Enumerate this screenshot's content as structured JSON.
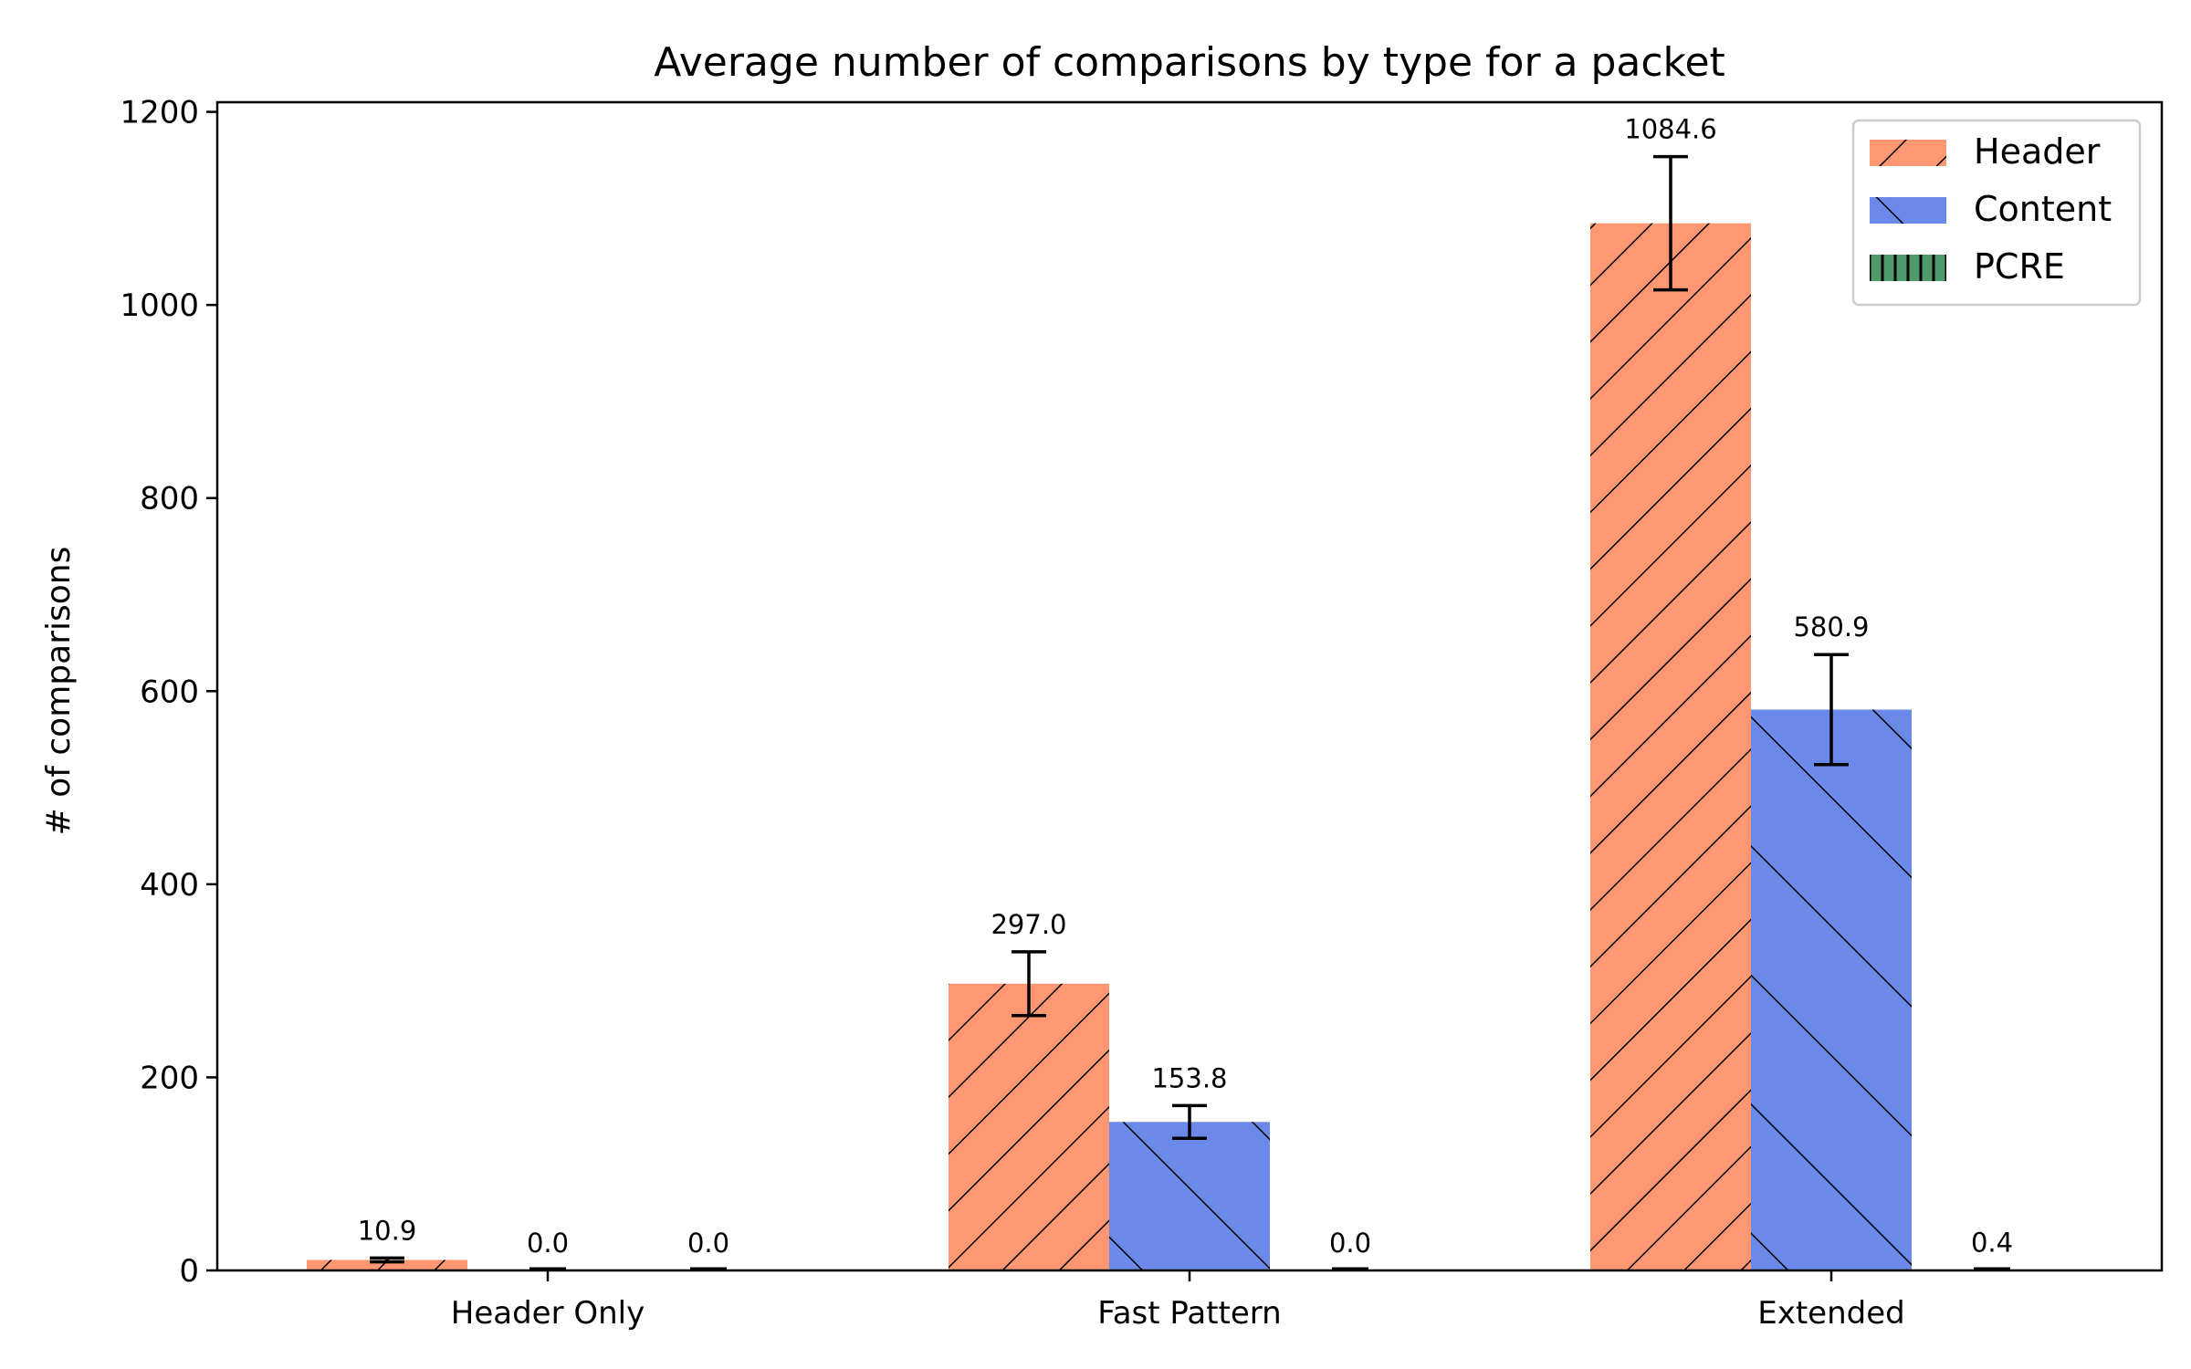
{
  "chart_data": {
    "type": "bar",
    "title": "Average number of comparisons by type for a packet",
    "xlabel": "",
    "ylabel": "# of comparisons",
    "categories": [
      "Header Only",
      "Fast Pattern",
      "Extended"
    ],
    "ylim": [
      0,
      1210
    ],
    "yticks": [
      0,
      200,
      400,
      600,
      800,
      1000,
      1200
    ],
    "grid": false,
    "legend_position": "top-right",
    "series": [
      {
        "name": "Header",
        "color": "#FF9872",
        "hatch": "forward-diagonal",
        "values": [
          10.9,
          297.0,
          1084.6
        ],
        "errors": [
          2,
          33,
          69
        ],
        "labels": [
          "10.9",
          "297.0",
          "1084.6"
        ]
      },
      {
        "name": "Content",
        "color": "#6A89E8",
        "hatch": "back-diagonal",
        "values": [
          0.0,
          153.8,
          580.9
        ],
        "errors": [
          0,
          17,
          57
        ],
        "labels": [
          "0.0",
          "153.8",
          "580.9"
        ]
      },
      {
        "name": "PCRE",
        "color": "#4F9A6A",
        "hatch": "vertical",
        "values": [
          0.0,
          0.0,
          0.4
        ],
        "errors": [
          0,
          0,
          0
        ],
        "labels": [
          "0.0",
          "0.0",
          "0.4"
        ]
      }
    ]
  }
}
